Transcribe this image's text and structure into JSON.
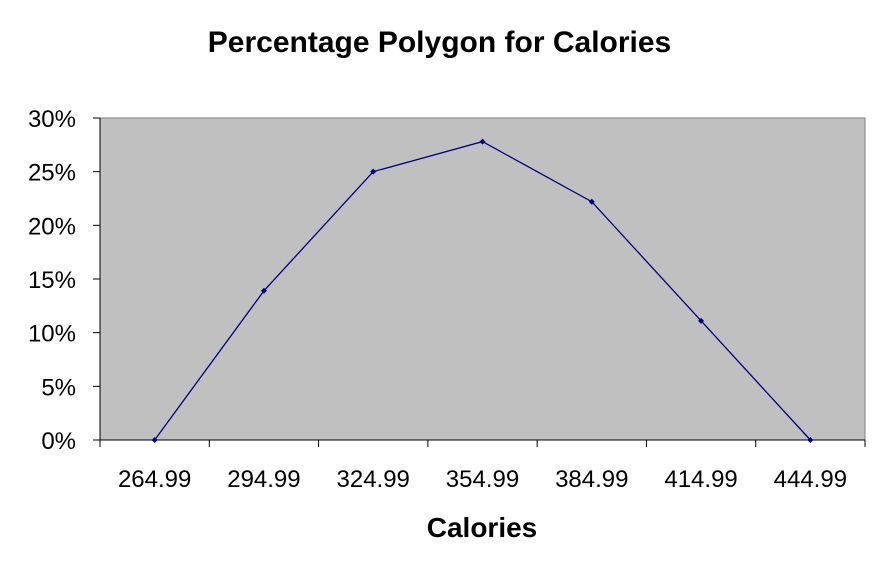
{
  "chart_data": {
    "type": "line",
    "title": "Percentage Polygon for Calories",
    "xlabel": "Calories",
    "ylabel": "",
    "categories": [
      "264.99",
      "294.99",
      "324.99",
      "354.99",
      "384.99",
      "414.99",
      "444.99"
    ],
    "series": [
      {
        "values": [
          0,
          13.9,
          25.0,
          27.8,
          22.2,
          11.1,
          0
        ]
      }
    ],
    "y_ticks": [
      "0%",
      "5%",
      "10%",
      "15%",
      "20%",
      "25%",
      "30%"
    ],
    "ylim": [
      0,
      30
    ],
    "grid": false,
    "legend": "none",
    "colors": {
      "plot_background": "#c0c0c0",
      "line": "#000080",
      "axis": "#000000"
    }
  }
}
